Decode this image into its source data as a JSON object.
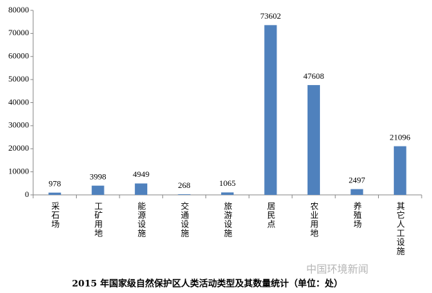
{
  "chart_data": {
    "type": "bar",
    "title": "2015 年国家级自然保护区人类活动类型及其数量统计（单位：处）",
    "watermark": "中国环境新闻",
    "categories": [
      "采石场",
      "工矿用地",
      "能源设施",
      "交通设施",
      "旅游设施",
      "居民点",
      "农业用地",
      "养殖场",
      "其它人工设施"
    ],
    "values": [
      978,
      3998,
      4949,
      268,
      1065,
      73602,
      47608,
      2497,
      21096
    ],
    "color": "#4f81bd",
    "ylim": [
      0,
      80000
    ],
    "yticks": [
      0,
      10000,
      20000,
      30000,
      40000,
      50000,
      60000,
      70000,
      80000
    ],
    "grid": false
  }
}
